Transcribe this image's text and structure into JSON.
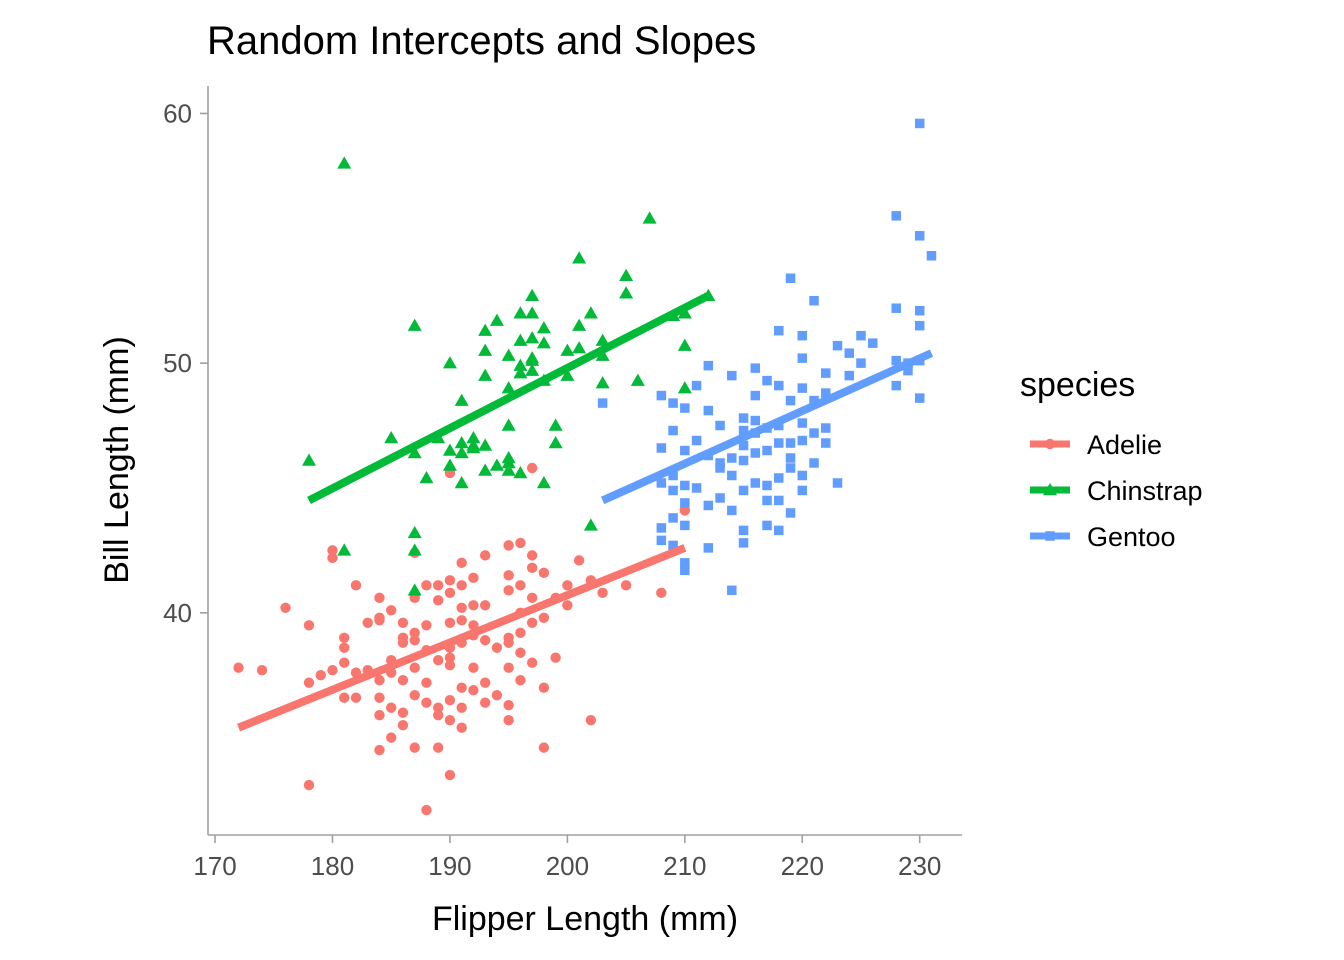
{
  "chart_data": {
    "type": "scatter",
    "title": "Random Intercepts and Slopes",
    "xlabel": "Flipper Length (mm)",
    "ylabel": "Bill Length (mm)",
    "xlim": [
      169.4,
      233.6
    ],
    "ylim": [
      31.1,
      61.1
    ],
    "xticks": [
      170,
      180,
      190,
      200,
      210,
      220,
      230
    ],
    "yticks": [
      40,
      50,
      60
    ],
    "grid": false,
    "legend": {
      "title": "species",
      "position": "right"
    },
    "series": [
      {
        "name": "Adelie",
        "color": "#F8766D",
        "marker": "circle",
        "fit_line": {
          "x": [
            172,
            210
          ],
          "y": [
            35.4,
            42.6
          ]
        },
        "points": [
          [
            172,
            37.8
          ],
          [
            174,
            37.7
          ],
          [
            176,
            40.2
          ],
          [
            178,
            33.1
          ],
          [
            178,
            37.2
          ],
          [
            178,
            39.5
          ],
          [
            179,
            37.5
          ],
          [
            180,
            37.7
          ],
          [
            180,
            42.2
          ],
          [
            180,
            42.5
          ],
          [
            181,
            36.6
          ],
          [
            181,
            38.6
          ],
          [
            181,
            39.0
          ],
          [
            181,
            38.0
          ],
          [
            182,
            37.6
          ],
          [
            182,
            36.6
          ],
          [
            182,
            41.1
          ],
          [
            183,
            39.6
          ],
          [
            183,
            37.7
          ],
          [
            184,
            35.9
          ],
          [
            184,
            36.6
          ],
          [
            184,
            34.5
          ],
          [
            184,
            37.3
          ],
          [
            184,
            39.8
          ],
          [
            184,
            40.6
          ],
          [
            184,
            39.7
          ],
          [
            185,
            38.1
          ],
          [
            185,
            40.1
          ],
          [
            185,
            37.6
          ],
          [
            185,
            35.0
          ],
          [
            185,
            36.2
          ],
          [
            186,
            39.6
          ],
          [
            186,
            37.3
          ],
          [
            186,
            38.8
          ],
          [
            186,
            35.5
          ],
          [
            186,
            39.0
          ],
          [
            186,
            36.0
          ],
          [
            187,
            40.6
          ],
          [
            187,
            37.8
          ],
          [
            187,
            36.7
          ],
          [
            187,
            38.9
          ],
          [
            187,
            34.6
          ],
          [
            187,
            42.4
          ],
          [
            187,
            39.2
          ],
          [
            188,
            32.1
          ],
          [
            188,
            38.5
          ],
          [
            188,
            36.4
          ],
          [
            188,
            37.2
          ],
          [
            188,
            41.1
          ],
          [
            188,
            39.5
          ],
          [
            189,
            34.6
          ],
          [
            189,
            40.5
          ],
          [
            189,
            38.1
          ],
          [
            189,
            36.2
          ],
          [
            189,
            41.1
          ],
          [
            189,
            35.9
          ],
          [
            190,
            33.5
          ],
          [
            190,
            38.6
          ],
          [
            190,
            39.6
          ],
          [
            190,
            37.9
          ],
          [
            190,
            40.8
          ],
          [
            190,
            36.5
          ],
          [
            190,
            35.7
          ],
          [
            190,
            41.3
          ],
          [
            190,
            38.2
          ],
          [
            191,
            38.8
          ],
          [
            191,
            37.0
          ],
          [
            191,
            42.0
          ],
          [
            191,
            40.2
          ],
          [
            191,
            36.2
          ],
          [
            191,
            35.4
          ],
          [
            191,
            39.7
          ],
          [
            191,
            41.1
          ],
          [
            192,
            40.3
          ],
          [
            192,
            39.1
          ],
          [
            192,
            36.9
          ],
          [
            192,
            41.4
          ],
          [
            192,
            37.8
          ],
          [
            192,
            39.5
          ],
          [
            193,
            38.9
          ],
          [
            193,
            40.3
          ],
          [
            193,
            37.2
          ],
          [
            193,
            36.4
          ],
          [
            193,
            42.3
          ],
          [
            194,
            38.6
          ],
          [
            194,
            36.7
          ],
          [
            195,
            40.9
          ],
          [
            195,
            42.7
          ],
          [
            195,
            39.0
          ],
          [
            195,
            35.7
          ],
          [
            195,
            37.8
          ],
          [
            195,
            38.8
          ],
          [
            195,
            41.5
          ],
          [
            195,
            36.3
          ],
          [
            196,
            40.0
          ],
          [
            196,
            42.8
          ],
          [
            196,
            41.1
          ],
          [
            196,
            39.2
          ],
          [
            196,
            37.3
          ],
          [
            196,
            38.4
          ],
          [
            197,
            39.6
          ],
          [
            197,
            41.8
          ],
          [
            197,
            42.3
          ],
          [
            197,
            38.0
          ],
          [
            197,
            40.6
          ],
          [
            197,
            45.8
          ],
          [
            198,
            34.6
          ],
          [
            198,
            41.6
          ],
          [
            198,
            39.8
          ],
          [
            198,
            37.0
          ],
          [
            199,
            38.2
          ],
          [
            199,
            40.6
          ],
          [
            200,
            41.1
          ],
          [
            200,
            40.3
          ],
          [
            201,
            42.1
          ],
          [
            202,
            41.3
          ],
          [
            202,
            35.7
          ],
          [
            203,
            40.8
          ],
          [
            205,
            41.1
          ],
          [
            208,
            40.8
          ],
          [
            210,
            44.1
          ],
          [
            190,
            45.6
          ]
        ]
      },
      {
        "name": "Chinstrap",
        "color": "#00BA38",
        "marker": "triangle",
        "fit_line": {
          "x": [
            178,
            212
          ],
          "y": [
            44.5,
            52.7
          ]
        },
        "points": [
          [
            178,
            46.1
          ],
          [
            181,
            58.0
          ],
          [
            181,
            42.5
          ],
          [
            185,
            47.0
          ],
          [
            187,
            51.5
          ],
          [
            187,
            46.4
          ],
          [
            187,
            43.2
          ],
          [
            187,
            42.5
          ],
          [
            187,
            40.9
          ],
          [
            188,
            45.4
          ],
          [
            189,
            47.0
          ],
          [
            190,
            50.0
          ],
          [
            190,
            46.5
          ],
          [
            190,
            45.9
          ],
          [
            191,
            46.4
          ],
          [
            191,
            46.8
          ],
          [
            191,
            45.2
          ],
          [
            191,
            48.5
          ],
          [
            192,
            47.0
          ],
          [
            192,
            46.6
          ],
          [
            192,
            46.7
          ],
          [
            193,
            51.3
          ],
          [
            193,
            50.5
          ],
          [
            193,
            49.5
          ],
          [
            193,
            46.7
          ],
          [
            193,
            45.7
          ],
          [
            194,
            51.7
          ],
          [
            194,
            45.9
          ],
          [
            195,
            49.0
          ],
          [
            195,
            50.3
          ],
          [
            195,
            47.5
          ],
          [
            195,
            46.2
          ],
          [
            195,
            45.7
          ],
          [
            195,
            46.0
          ],
          [
            196,
            50.9
          ],
          [
            196,
            49.6
          ],
          [
            196,
            52.0
          ],
          [
            196,
            49.9
          ],
          [
            196,
            45.6
          ],
          [
            197,
            52.7
          ],
          [
            197,
            51.0
          ],
          [
            197,
            50.2
          ],
          [
            197,
            50.1
          ],
          [
            197,
            52.0
          ],
          [
            197,
            49.7
          ],
          [
            198,
            49.3
          ],
          [
            198,
            51.4
          ],
          [
            198,
            50.8
          ],
          [
            198,
            45.2
          ],
          [
            199,
            47.5
          ],
          [
            199,
            46.8
          ],
          [
            200,
            50.5
          ],
          [
            200,
            49.5
          ],
          [
            201,
            54.2
          ],
          [
            201,
            51.5
          ],
          [
            201,
            50.6
          ],
          [
            202,
            52.0
          ],
          [
            202,
            43.5
          ],
          [
            203,
            50.9
          ],
          [
            203,
            49.2
          ],
          [
            203,
            50.3
          ],
          [
            205,
            53.5
          ],
          [
            205,
            52.8
          ],
          [
            206,
            49.3
          ],
          [
            207,
            55.8
          ],
          [
            209,
            51.9
          ],
          [
            210,
            50.7
          ],
          [
            210,
            52.0
          ],
          [
            210,
            49.0
          ],
          [
            212,
            52.7
          ]
        ]
      },
      {
        "name": "Gentoo",
        "color": "#619CFF",
        "marker": "square",
        "fit_line": {
          "x": [
            203,
            231
          ],
          "y": [
            44.5,
            50.4
          ]
        },
        "points": [
          [
            203,
            48.4
          ],
          [
            208,
            48.7
          ],
          [
            208,
            46.6
          ],
          [
            208,
            43.4
          ],
          [
            208,
            42.9
          ],
          [
            208,
            45.2
          ],
          [
            209,
            48.4
          ],
          [
            209,
            47.3
          ],
          [
            209,
            45.5
          ],
          [
            209,
            44.9
          ],
          [
            209,
            43.8
          ],
          [
            209,
            42.7
          ],
          [
            210,
            48.2
          ],
          [
            210,
            46.5
          ],
          [
            210,
            45.1
          ],
          [
            210,
            43.5
          ],
          [
            210,
            42.0
          ],
          [
            210,
            41.7
          ],
          [
            210,
            44.4
          ],
          [
            211,
            49.1
          ],
          [
            211,
            46.9
          ],
          [
            211,
            45.0
          ],
          [
            212,
            49.9
          ],
          [
            212,
            48.1
          ],
          [
            212,
            46.3
          ],
          [
            212,
            44.3
          ],
          [
            212,
            42.6
          ],
          [
            213,
            47.5
          ],
          [
            213,
            46.0
          ],
          [
            213,
            45.8
          ],
          [
            213,
            44.6
          ],
          [
            214,
            49.5
          ],
          [
            214,
            45.5
          ],
          [
            214,
            46.2
          ],
          [
            214,
            40.9
          ],
          [
            214,
            44.1
          ],
          [
            215,
            47.3
          ],
          [
            215,
            47.8
          ],
          [
            215,
            46.1
          ],
          [
            215,
            44.9
          ],
          [
            215,
            43.3
          ],
          [
            215,
            42.8
          ],
          [
            215,
            46.7
          ],
          [
            216,
            49.8
          ],
          [
            216,
            48.7
          ],
          [
            216,
            47.7
          ],
          [
            216,
            46.4
          ],
          [
            216,
            45.2
          ],
          [
            216,
            47.2
          ],
          [
            217,
            49.3
          ],
          [
            217,
            47.4
          ],
          [
            217,
            46.5
          ],
          [
            217,
            45.1
          ],
          [
            217,
            44.5
          ],
          [
            217,
            43.5
          ],
          [
            218,
            51.3
          ],
          [
            218,
            49.1
          ],
          [
            218,
            47.5
          ],
          [
            218,
            46.8
          ],
          [
            218,
            45.4
          ],
          [
            218,
            44.5
          ],
          [
            218,
            43.3
          ],
          [
            219,
            53.4
          ],
          [
            219,
            48.5
          ],
          [
            219,
            46.8
          ],
          [
            219,
            45.8
          ],
          [
            219,
            44.0
          ],
          [
            219,
            46.2
          ],
          [
            220,
            51.1
          ],
          [
            220,
            50.2
          ],
          [
            220,
            49.0
          ],
          [
            220,
            47.6
          ],
          [
            220,
            46.9
          ],
          [
            220,
            45.5
          ],
          [
            220,
            44.9
          ],
          [
            221,
            52.5
          ],
          [
            221,
            48.5
          ],
          [
            221,
            47.2
          ],
          [
            221,
            46.0
          ],
          [
            222,
            49.6
          ],
          [
            222,
            48.8
          ],
          [
            222,
            47.4
          ],
          [
            222,
            46.8
          ],
          [
            223,
            50.7
          ],
          [
            223,
            45.2
          ],
          [
            224,
            50.4
          ],
          [
            224,
            49.5
          ],
          [
            225,
            51.1
          ],
          [
            225,
            50.0
          ],
          [
            226,
            50.8
          ],
          [
            228,
            55.9
          ],
          [
            228,
            52.2
          ],
          [
            228,
            50.1
          ],
          [
            228,
            49.1
          ],
          [
            229,
            50.0
          ],
          [
            229,
            49.7
          ],
          [
            230,
            59.6
          ],
          [
            230,
            55.1
          ],
          [
            230,
            52.1
          ],
          [
            230,
            51.5
          ],
          [
            230,
            50.1
          ],
          [
            230,
            48.6
          ],
          [
            231,
            54.3
          ]
        ]
      }
    ]
  }
}
